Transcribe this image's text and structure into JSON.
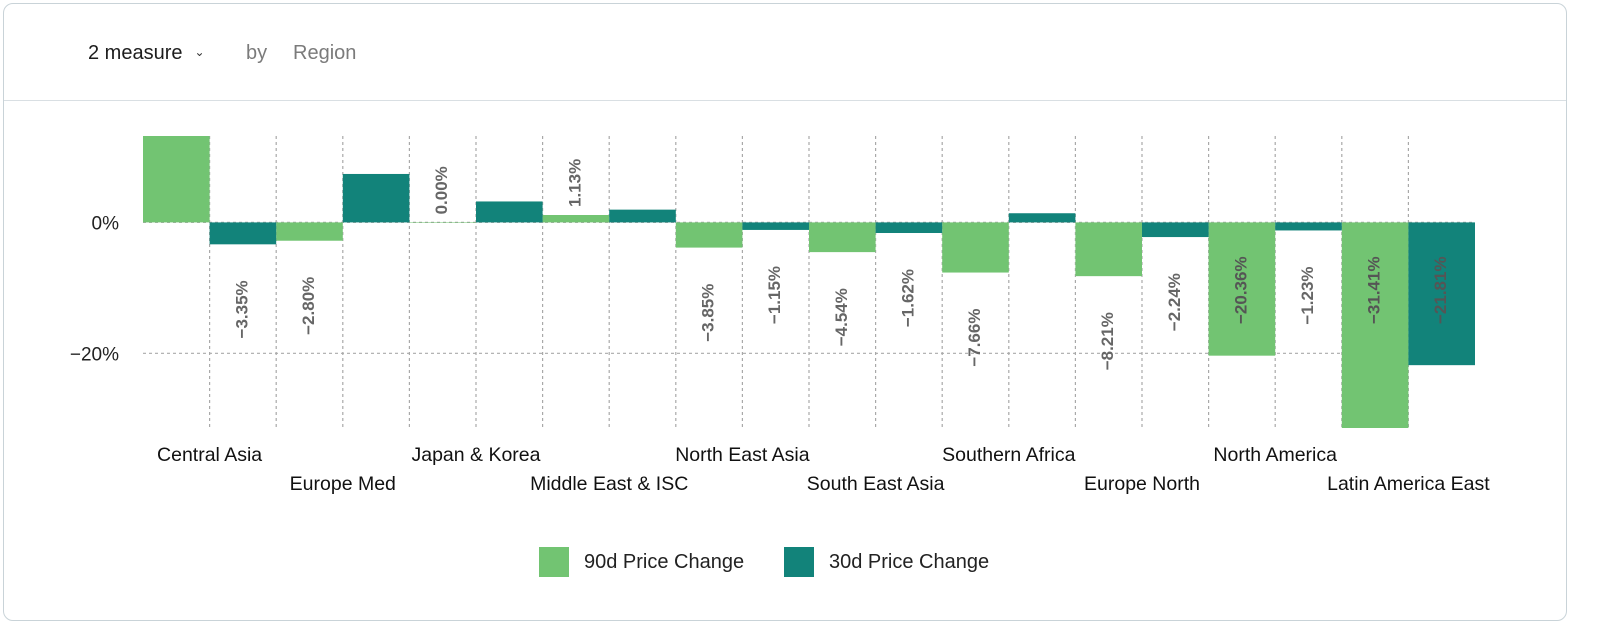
{
  "toolbar": {
    "measure_label": "2 measure",
    "by_label": "by",
    "dimension_label": "Region"
  },
  "colors": {
    "series_90d": "#72c472",
    "series_30d": "#12837a"
  },
  "chart_data": {
    "type": "bar",
    "title": "",
    "xlabel": "",
    "ylabel": "",
    "categories": [
      "Central Asia",
      "Europe Med",
      "Japan & Korea",
      "Middle East & ISC",
      "North East Asia",
      "South East Asia",
      "Southern Africa",
      "Europe North",
      "North America",
      "Latin America East"
    ],
    "series": [
      {
        "name": "90d Price Change",
        "values": [
          13.2,
          -2.8,
          0.0,
          1.13,
          -3.85,
          -4.54,
          -7.66,
          -8.21,
          -20.36,
          -31.41
        ]
      },
      {
        "name": "30d Price Change",
        "values": [
          -3.35,
          7.4,
          3.2,
          1.95,
          -1.15,
          -1.62,
          1.4,
          -2.24,
          -1.23,
          -21.81
        ]
      }
    ],
    "data_labels": [
      [
        "",
        "−2.80%",
        "0.00%",
        "1.13%",
        "−3.85%",
        "−4.54%",
        "−7.66%",
        "−8.21%",
        "−20.36%",
        "−31.41%"
      ],
      [
        "−3.35%",
        "",
        "",
        "",
        "−1.15%",
        "−1.62%",
        "",
        "−2.24%",
        "−1.23%",
        "−21.81%"
      ]
    ],
    "y_ticks": [
      0,
      -20
    ],
    "y_tick_labels": [
      "0%",
      "−20%"
    ],
    "ylim": [
      -31.41,
      13.2
    ],
    "grid": true,
    "legend": "bottom-center"
  }
}
